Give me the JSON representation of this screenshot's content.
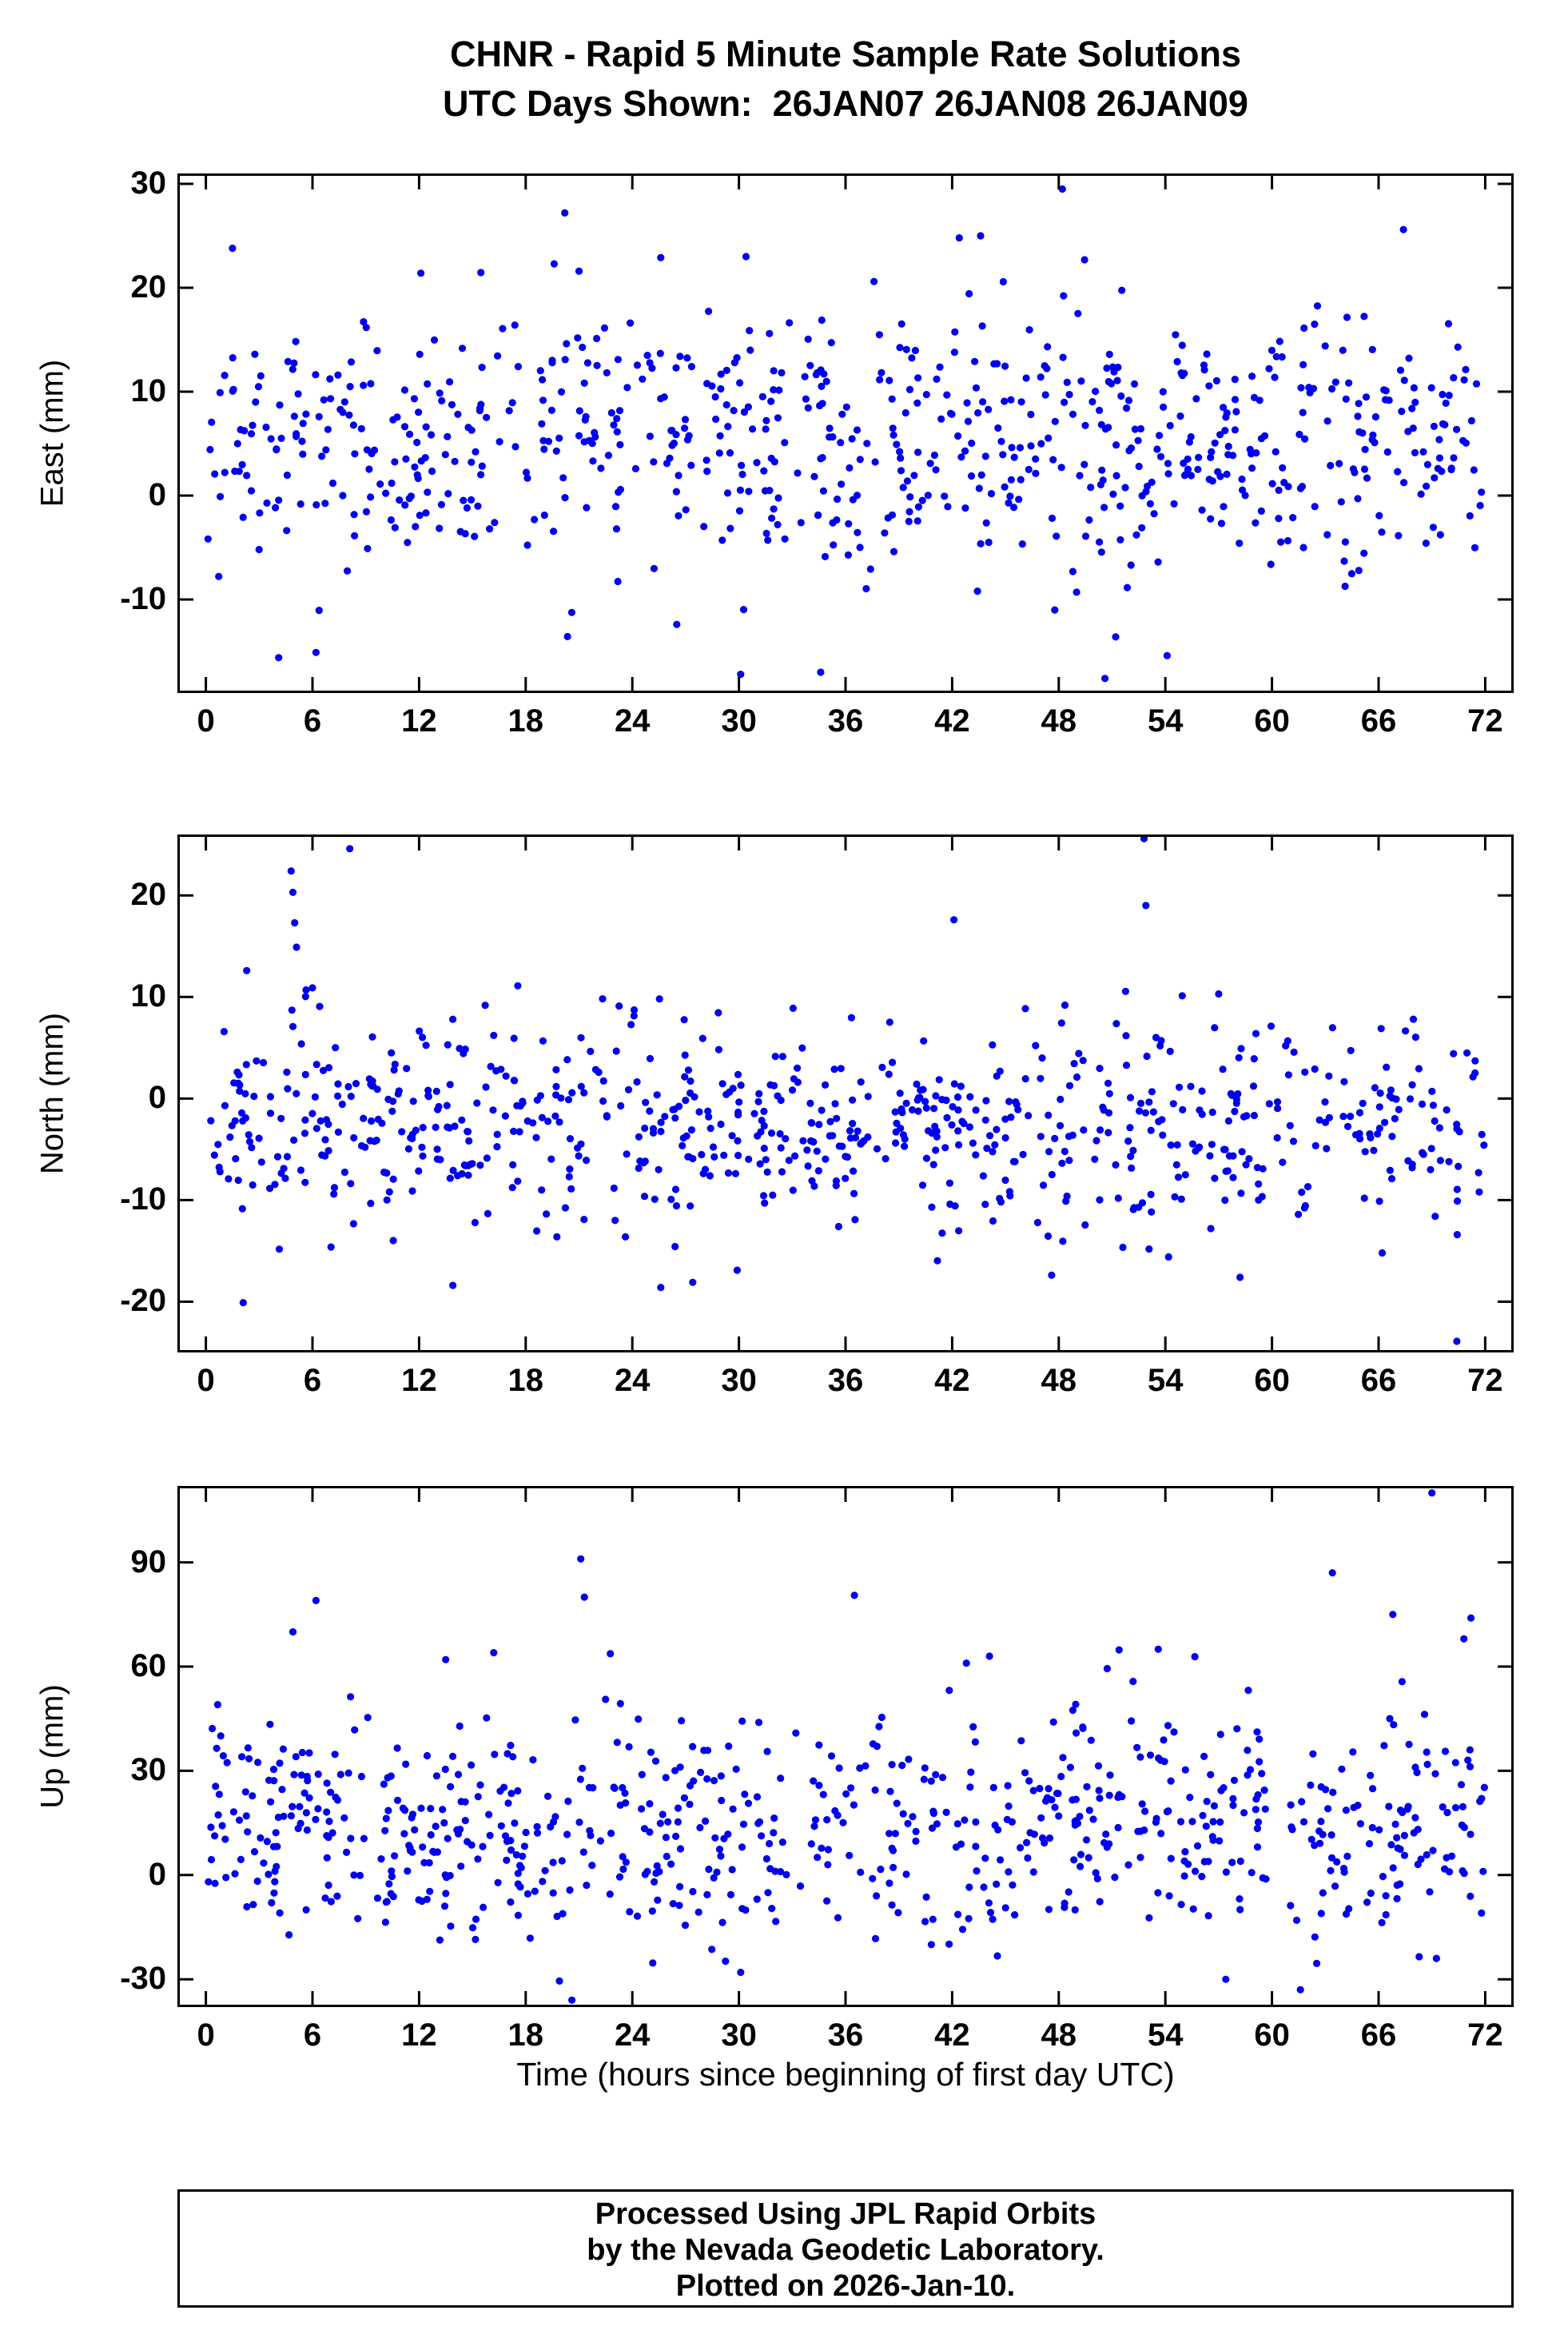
{
  "title": {
    "line1": "CHNR - Rapid 5 Minute Sample Rate Solutions",
    "line2": "UTC Days Shown:  26JAN07 26JAN08 26JAN09"
  },
  "footer": {
    "line1": "Processed Using JPL Rapid Orbits",
    "line2": "by the Nevada Geodetic Laboratory.",
    "line3": "Plotted on 2026-Jan-10."
  },
  "chart_data": {
    "type": "scatter",
    "station": "CHNR",
    "utc_days_shown": [
      "26JAN07",
      "26JAN08",
      "26JAN09"
    ],
    "sample_rate": "5 minute",
    "orbit_product": "JPL Rapid Orbits",
    "plotted_on": "2026-Jan-10",
    "marker": {
      "shape": "circle",
      "color": "#0000ee",
      "radius": 4.6
    },
    "colors": {
      "frame": "#000000",
      "background": "#ffffff",
      "text": "#000000"
    },
    "x": {
      "label": "Time (hours since beginning of first day UTC)",
      "lim": [
        -1.6,
        73.6
      ],
      "ticks": [
        0,
        6,
        12,
        18,
        24,
        30,
        36,
        42,
        48,
        54,
        60,
        66,
        72
      ]
    },
    "panels": [
      {
        "id": "east",
        "ylabel": "East (mm)",
        "ylim": [
          -19,
          31
        ],
        "yticks": [
          -10,
          0,
          10,
          20,
          30
        ],
        "cloud": {
          "seed": 101,
          "n": 740,
          "x_range": [
            0.05,
            72
          ],
          "mean": 5.5,
          "sd": 6.2,
          "y_clamp": [
            -16,
            24
          ]
        },
        "outliers": [
          [
            1.5,
            23.8
          ],
          [
            20.2,
            27.2
          ],
          [
            19.6,
            22.3
          ],
          [
            21.0,
            21.6
          ],
          [
            48.2,
            29.5
          ],
          [
            43.6,
            25.0
          ],
          [
            67.4,
            25.6
          ],
          [
            12.1,
            21.4
          ],
          [
            30.4,
            23.0
          ],
          [
            25.6,
            22.9
          ],
          [
            37.6,
            20.6
          ],
          [
            42.4,
            24.8
          ],
          [
            4.1,
            -15.6
          ],
          [
            6.2,
            -15.1
          ],
          [
            30.1,
            -17.2
          ],
          [
            34.6,
            -17.0
          ],
          [
            50.6,
            -17.6
          ],
          [
            54.1,
            -15.4
          ],
          [
            51.2,
            -13.6
          ],
          [
            26.5,
            -12.4
          ]
        ]
      },
      {
        "id": "north",
        "ylabel": "North (mm)",
        "ylim": [
          -25,
          26
        ],
        "yticks": [
          -20,
          -10,
          0,
          10,
          20
        ],
        "cloud": {
          "seed": 202,
          "n": 740,
          "x_range": [
            0.05,
            72
          ],
          "mean": -2.5,
          "sd": 5.4,
          "y_clamp": [
            -16,
            12
          ]
        },
        "outliers": [
          [
            4.8,
            22.4
          ],
          [
            4.9,
            20.3
          ],
          [
            5.0,
            17.3
          ],
          [
            5.1,
            14.9
          ],
          [
            8.1,
            24.6
          ],
          [
            52.8,
            25.6
          ],
          [
            52.9,
            19.0
          ],
          [
            42.1,
            17.6
          ],
          [
            2.3,
            12.6
          ],
          [
            6.0,
            10.9
          ],
          [
            70.4,
            -23.9
          ],
          [
            2.1,
            -20.1
          ],
          [
            13.9,
            -18.4
          ],
          [
            25.6,
            -18.6
          ],
          [
            27.4,
            -18.1
          ],
          [
            58.2,
            -17.6
          ],
          [
            47.6,
            -17.4
          ],
          [
            29.9,
            -16.9
          ],
          [
            66.2,
            -15.2
          ],
          [
            57.0,
            10.3
          ]
        ]
      },
      {
        "id": "up",
        "ylabel": "Up (mm)",
        "ylim": [
          -38,
          112
        ],
        "yticks": [
          -30,
          0,
          30,
          60,
          90
        ],
        "cloud": {
          "seed": 303,
          "n": 740,
          "x_range": [
            0.05,
            72
          ],
          "mean": 14,
          "sd": 16.5,
          "y_clamp": [
            -26,
            66
          ]
        },
        "outliers": [
          [
            21.1,
            91
          ],
          [
            21.3,
            80
          ],
          [
            6.2,
            79
          ],
          [
            36.5,
            80.5
          ],
          [
            69.0,
            110
          ],
          [
            63.4,
            87
          ],
          [
            66.8,
            75
          ],
          [
            71.2,
            74
          ],
          [
            53.6,
            65
          ],
          [
            44.1,
            63
          ],
          [
            13.5,
            62
          ],
          [
            16.2,
            64
          ],
          [
            42.8,
            61
          ],
          [
            20.6,
            -36
          ],
          [
            19.9,
            -30.5
          ],
          [
            57.4,
            -30
          ],
          [
            61.6,
            -33
          ],
          [
            30.1,
            -28
          ],
          [
            4.9,
            70
          ],
          [
            70.8,
            68
          ]
        ]
      }
    ]
  }
}
